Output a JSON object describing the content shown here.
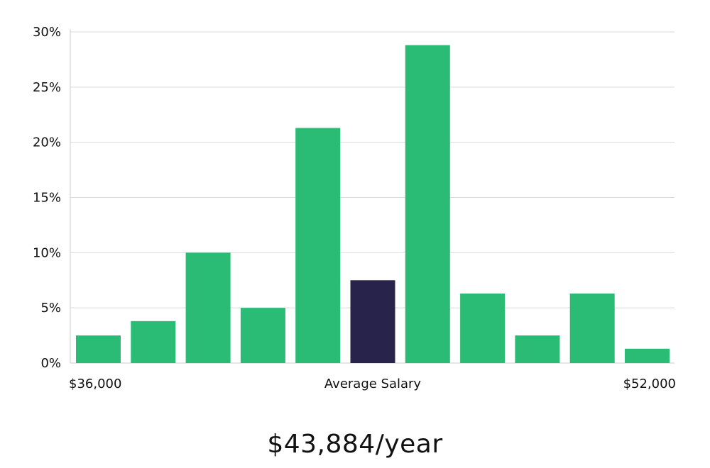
{
  "chart_data": {
    "type": "bar",
    "y_unit": "%",
    "ylim": [
      0,
      30
    ],
    "y_ticks": [
      0,
      5,
      10,
      15,
      20,
      25,
      30
    ],
    "grid": true,
    "values": [
      2.5,
      3.8,
      10.0,
      5.0,
      21.3,
      7.5,
      28.8,
      6.3,
      2.5,
      6.3,
      1.3
    ],
    "highlight_index": 5,
    "x_labels": {
      "left": "$36,000",
      "center": "Average Salary",
      "right": "$52,000"
    }
  },
  "colors": {
    "bar": "#2abb74",
    "highlight": "#28234a",
    "grid": "#d9d9d9",
    "axis": "#cccccc"
  },
  "salary": {
    "value": "$43,884/year"
  }
}
